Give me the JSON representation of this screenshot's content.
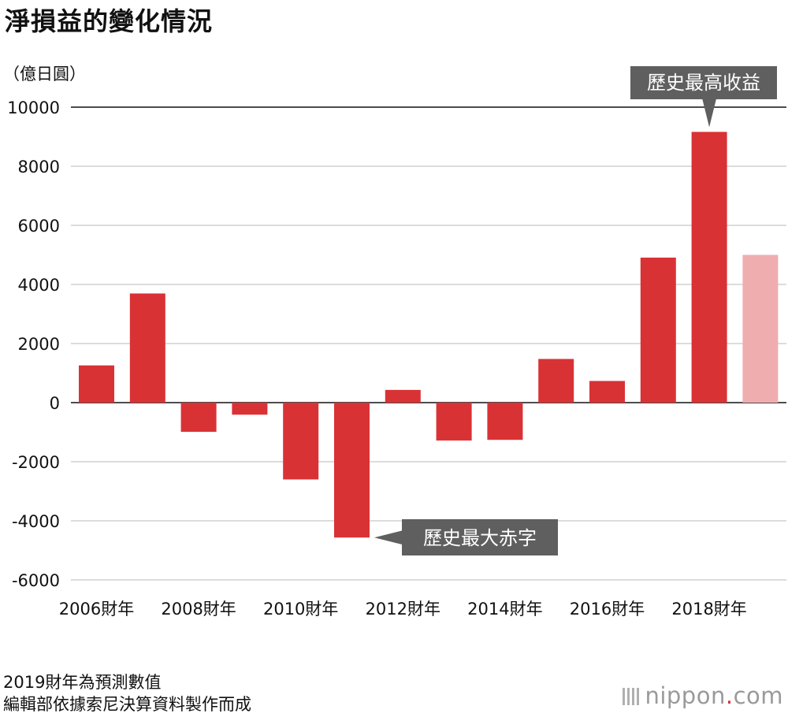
{
  "title": "淨損益的變化情況",
  "unit_label": "（億日圓）",
  "notes": [
    "2019財年為預測數值",
    "編輯部依據索尼決算資料製作而成"
  ],
  "brand": {
    "name": "nippon",
    "dot": ".",
    "tld": "com"
  },
  "colors": {
    "bar": "#d93235",
    "forecast_bar": "#efadaf",
    "callout": "#5f5f5f",
    "grid": "#c8c8c8"
  },
  "chart_data": {
    "type": "bar",
    "title": "淨損益的變化情況",
    "ylabel": "（億日圓）",
    "ylim": [
      -6000,
      10000
    ],
    "yticks": [
      10000,
      8000,
      6000,
      4000,
      2000,
      0,
      -2000,
      -4000,
      -6000
    ],
    "x": [
      "2006",
      "2007",
      "2008",
      "2009",
      "2010",
      "2011",
      "2012",
      "2013",
      "2014",
      "2015",
      "2016",
      "2017",
      "2018",
      "2019"
    ],
    "xtick_labels": [
      "2006財年",
      "",
      "2008財年",
      "",
      "2010財年",
      "",
      "2012財年",
      "",
      "2014財年",
      "",
      "2016財年",
      "",
      "2018財年",
      ""
    ],
    "values": [
      1260,
      3694,
      -989,
      -408,
      -2600,
      -4567,
      430,
      -1284,
      -1260,
      1478,
      733,
      4908,
      9163,
      5000
    ],
    "forecast": [
      false,
      false,
      false,
      false,
      false,
      false,
      false,
      false,
      false,
      false,
      false,
      false,
      false,
      true
    ],
    "annotations": [
      {
        "text": "歷史最高收益",
        "index": 12
      },
      {
        "text": "歷史最大赤字",
        "index": 5
      }
    ],
    "grid": true
  }
}
